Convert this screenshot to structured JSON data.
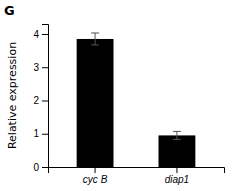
{
  "chart_data": {
    "type": "bar",
    "categories": [
      "cyc B",
      "diap1"
    ],
    "values": [
      3.85,
      0.95
    ],
    "errors": [
      0.18,
      0.12
    ],
    "color": "#000000",
    "ylabel": "Relative expression",
    "ylim": [
      0,
      4.3
    ],
    "yticks": [
      0,
      1,
      2,
      3,
      4
    ],
    "annotations": [
      "G"
    ],
    "grid": false
  }
}
